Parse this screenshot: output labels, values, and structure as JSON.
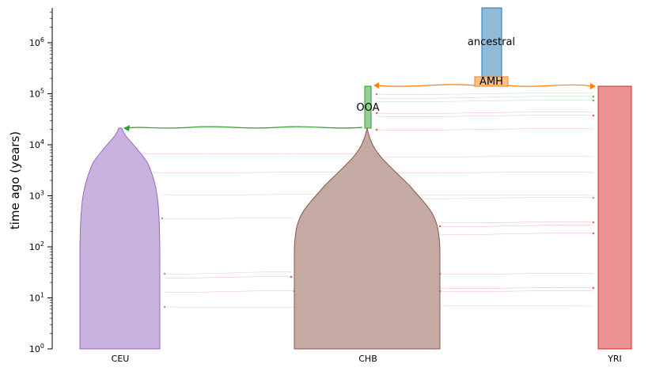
{
  "diagram": {
    "ylabel": "time ago (years)",
    "y_scale": "log",
    "y_ticks": [
      {
        "base": "10",
        "exp": "0"
      },
      {
        "base": "10",
        "exp": "1"
      },
      {
        "base": "10",
        "exp": "2"
      },
      {
        "base": "10",
        "exp": "3"
      },
      {
        "base": "10",
        "exp": "4"
      },
      {
        "base": "10",
        "exp": "5"
      },
      {
        "base": "10",
        "exp": "6"
      }
    ],
    "demes": [
      {
        "name": "ancestral",
        "label": "ancestral",
        "color": "#8fbbd9",
        "edge": "#1f77b4"
      },
      {
        "name": "AMH",
        "label": "AMH",
        "color": "#ffbf86",
        "edge": "#ff7f0e"
      },
      {
        "name": "OOA",
        "label": "OOA",
        "color": "#95cf95",
        "edge": "#2ca02c"
      },
      {
        "name": "CEU",
        "label": "CEU",
        "color": "#c9b3de",
        "edge": "#9467bd"
      },
      {
        "name": "CHB",
        "label": "CHB",
        "color": "#c5aaa4",
        "edge": "#8c564b"
      },
      {
        "name": "YRI",
        "label": "YRI",
        "color": "#ea9293",
        "edge": "#d62728"
      }
    ],
    "x_labels": [
      "CEU",
      "CHB",
      "YRI"
    ],
    "pulse_colors": {
      "ooa_to_ceu": "#2ca02c",
      "amh_to_yri": "#ff7f0e",
      "migration": "#d62728"
    }
  }
}
